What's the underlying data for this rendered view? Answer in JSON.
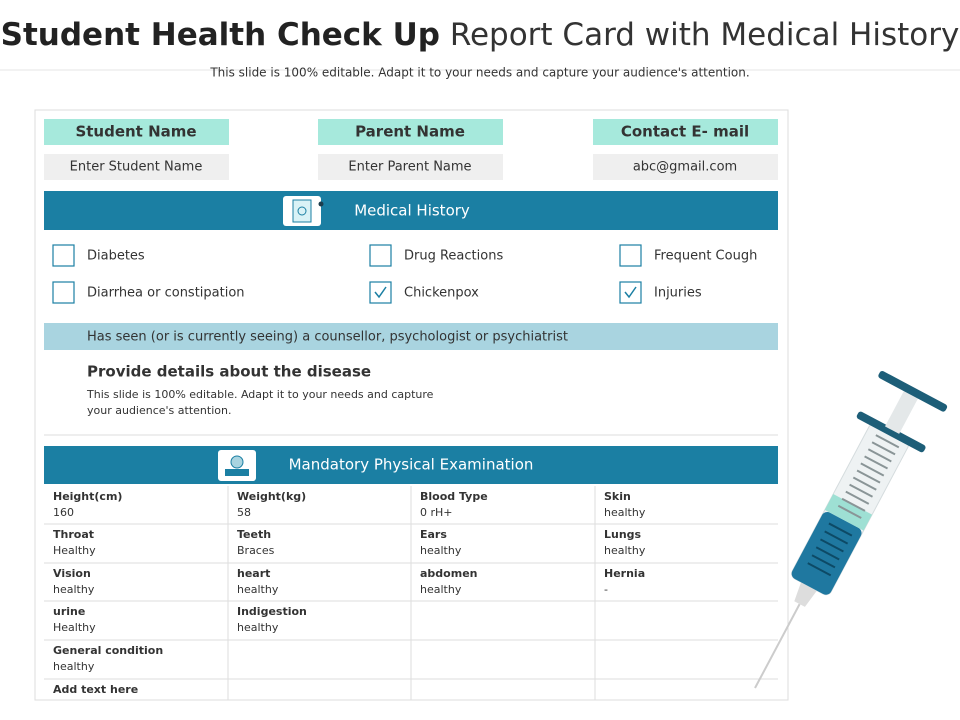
{
  "header": {
    "title_bold": "Student Health Check Up",
    "title_rest": "Report Card with Medical History",
    "subtitle": "This slide is 100% editable. Adapt it to your needs and capture your audience's attention."
  },
  "info": [
    {
      "label": "Student Name",
      "value": "Enter Student  Name"
    },
    {
      "label": "Parent Name",
      "value": "Enter Parent Name"
    },
    {
      "label": "Contact E- mail",
      "value": "abc@gmail.com"
    }
  ],
  "medical_history": {
    "title": "Medical History",
    "items": [
      {
        "label": "Diabetes",
        "checked": false
      },
      {
        "label": "Drug Reactions",
        "checked": false
      },
      {
        "label": "Frequent Cough",
        "checked": false
      },
      {
        "label": "Diarrhea or constipation",
        "checked": false
      },
      {
        "label": "Chickenpox",
        "checked": true
      },
      {
        "label": "Injuries",
        "checked": true
      }
    ],
    "counsellor": "Has seen (or is currently seeing) a counsellor, psychologist or psychiatrist",
    "details_title": "Provide details about the disease",
    "details_text": "This slide is 100% editable. Adapt it to your needs and capture your audience's attention."
  },
  "exam": {
    "title": "Mandatory Physical Examination",
    "rows": [
      [
        {
          "label": "Height(cm)",
          "value": "160"
        },
        {
          "label": "Weight(kg)",
          "value": "58"
        },
        {
          "label": "Blood Type",
          "value": "0 rH+"
        },
        {
          "label": "Skin",
          "value": "healthy"
        }
      ],
      [
        {
          "label": "Throat",
          "value": "Healthy"
        },
        {
          "label": "Teeth",
          "value": "Braces"
        },
        {
          "label": "Ears",
          "value": "healthy"
        },
        {
          "label": "Lungs",
          "value": "healthy"
        }
      ],
      [
        {
          "label": "Vision",
          "value": "healthy"
        },
        {
          "label": "heart",
          "value": "healthy"
        },
        {
          "label": "abdomen",
          "value": "healthy"
        },
        {
          "label": "Hernia",
          "value": "-"
        }
      ],
      [
        {
          "label": "urine",
          "value": "Healthy"
        },
        {
          "label": "Indigestion",
          "value": "healthy"
        },
        null,
        null
      ],
      [
        {
          "label": "General condition",
          "value": "healthy"
        },
        null,
        null,
        null
      ]
    ],
    "footer": "Add text here"
  }
}
